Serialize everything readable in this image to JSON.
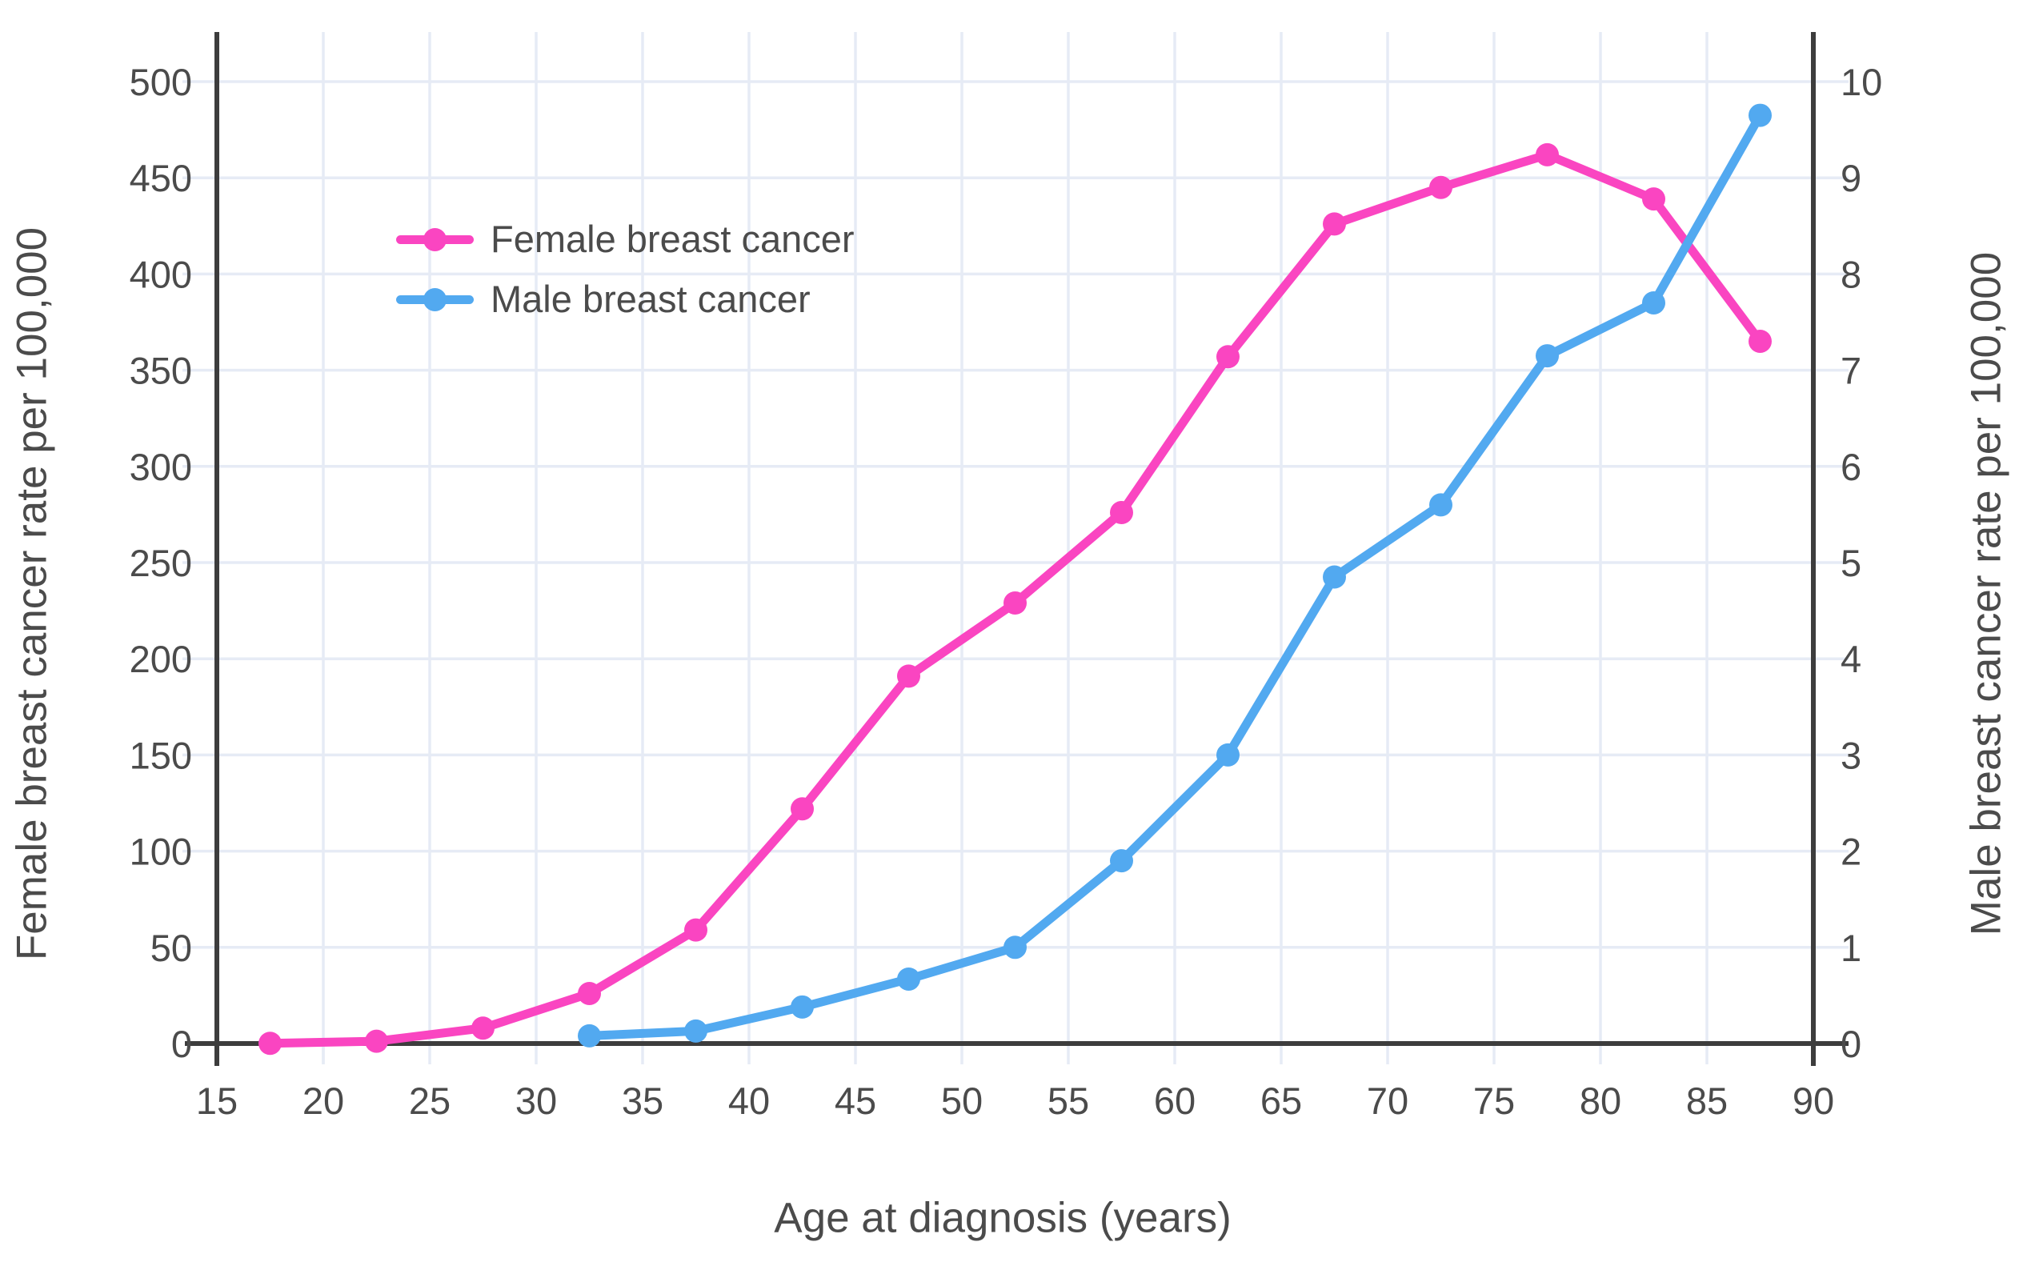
{
  "figure": {
    "background": "#ffffff",
    "text_color": "#4b4b4b",
    "axis_color": "#3d3d3d",
    "grid_color": "#e6ebf5"
  },
  "legend": {
    "items": [
      {
        "label": "Female breast cancer",
        "color": "#FA45C1"
      },
      {
        "label": "Male breast cancer",
        "color": "#52A9F0"
      }
    ]
  },
  "axes": {
    "x_title": "Age at diagnosis (years)",
    "left_title": "Female breast cancer rate per 100,000",
    "right_title": "Male breast cancer rate per 100,000",
    "x_ticks": [
      15,
      20,
      25,
      30,
      35,
      40,
      45,
      50,
      55,
      60,
      65,
      70,
      75,
      80,
      85,
      90
    ],
    "left_ticks": [
      0,
      50,
      100,
      150,
      200,
      250,
      300,
      350,
      400,
      450,
      500
    ],
    "right_ticks": [
      0,
      1,
      2,
      3,
      4,
      5,
      6,
      7,
      8,
      9,
      10
    ]
  },
  "chart_data": {
    "type": "line",
    "title": "",
    "xlabel": "Age at diagnosis (years)",
    "ylabel_left": "Female breast cancer rate per 100,000",
    "ylabel_right": "Male breast cancer rate per 100,000",
    "xlim": [
      15,
      90
    ],
    "ylim_left": [
      0,
      500
    ],
    "ylim_right": [
      0,
      10
    ],
    "grid": true,
    "legend_position": "upper-left-inside",
    "x": [
      17.5,
      22.5,
      27.5,
      32.5,
      37.5,
      42.5,
      47.5,
      52.5,
      57.5,
      62.5,
      67.5,
      72.5,
      77.5,
      82.5,
      87.5
    ],
    "series": [
      {
        "name": "Female breast cancer",
        "axis": "left",
        "color": "#FA45C1",
        "values": [
          0.1,
          1.2,
          8,
          26,
          59,
          122,
          191,
          229,
          276,
          357,
          426,
          445,
          462,
          439,
          365
        ]
      },
      {
        "name": "Male breast cancer",
        "axis": "right",
        "color": "#52A9F0",
        "values": [
          null,
          null,
          null,
          0.08,
          0.13,
          0.38,
          0.67,
          1.0,
          1.9,
          3.0,
          4.85,
          5.6,
          7.15,
          7.7,
          9.65
        ]
      }
    ]
  }
}
